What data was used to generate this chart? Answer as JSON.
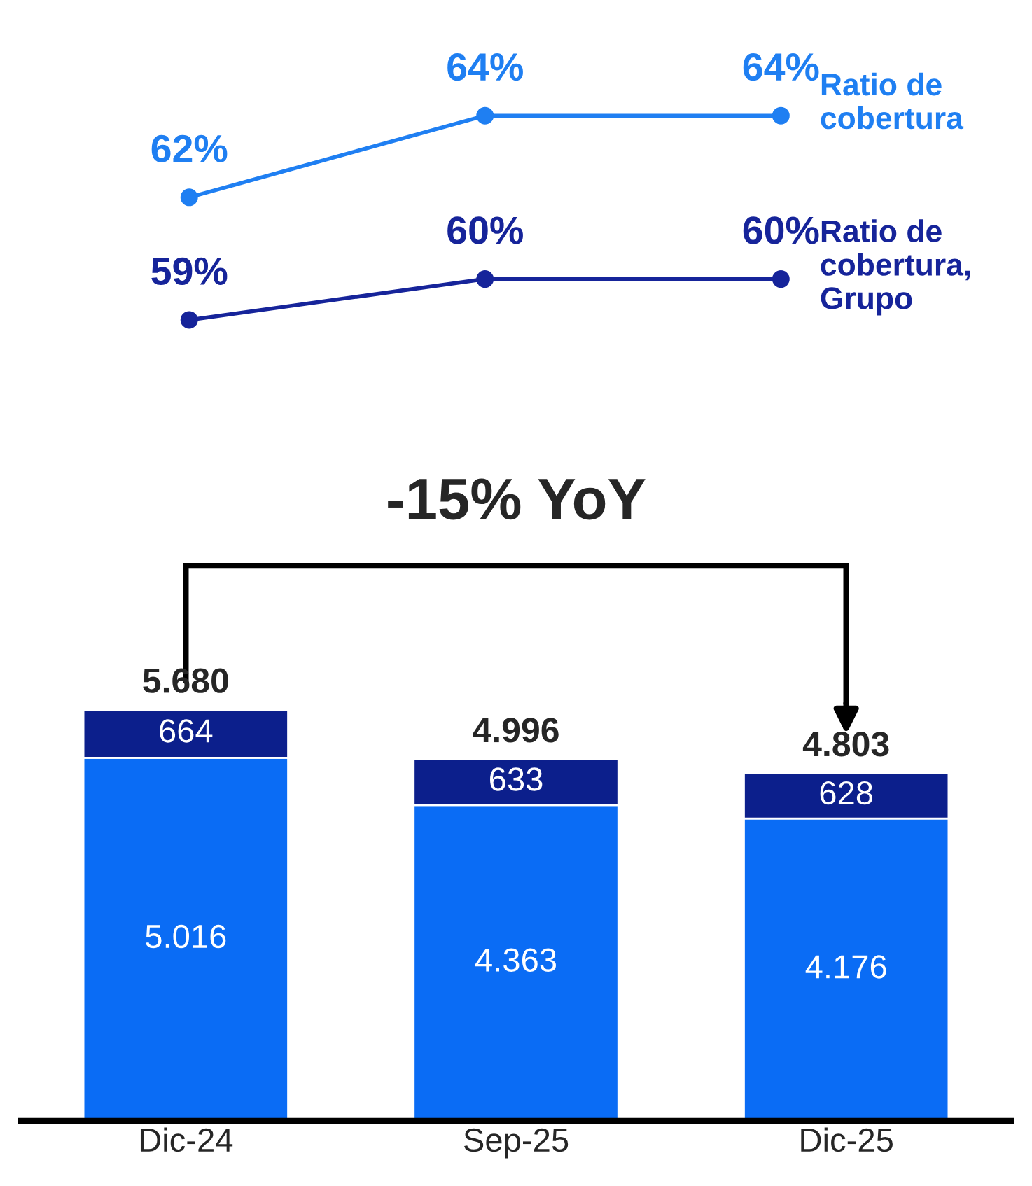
{
  "chart_data": [
    {
      "type": "line",
      "categories": [
        null,
        null,
        null
      ],
      "tick_labels": false,
      "marker": "circle",
      "line_style": "solid",
      "legend": false,
      "series": [
        {
          "name": "Ratio de cobertura",
          "color": "#1f7ff2",
          "values": [
            62,
            64,
            64
          ],
          "value_labels": [
            "62%",
            "64%",
            "64%"
          ]
        },
        {
          "name": "Ratio de cobertura, Grupo",
          "color": "#16249a",
          "values": [
            59,
            60,
            60
          ],
          "value_labels": [
            "59%",
            "60%",
            "60%"
          ]
        }
      ]
    },
    {
      "type": "bar",
      "stacked": true,
      "categories": [
        "Dic-24",
        "Sep-25",
        "Dic-25"
      ],
      "tick_labels": "x",
      "legend": false,
      "series": [
        {
          "color": "#0a6cf5",
          "values": [
            5016,
            4363,
            4176
          ],
          "value_labels": [
            "5.016",
            "4.363",
            "4.176"
          ]
        },
        {
          "color": "#0c1f8c",
          "values": [
            664,
            633,
            628
          ],
          "value_labels": [
            "664",
            "633",
            "628"
          ]
        }
      ],
      "totals": [
        "5.680",
        "4.996",
        "4.803"
      ],
      "annotations": [
        "-15% YoY"
      ]
    }
  ]
}
